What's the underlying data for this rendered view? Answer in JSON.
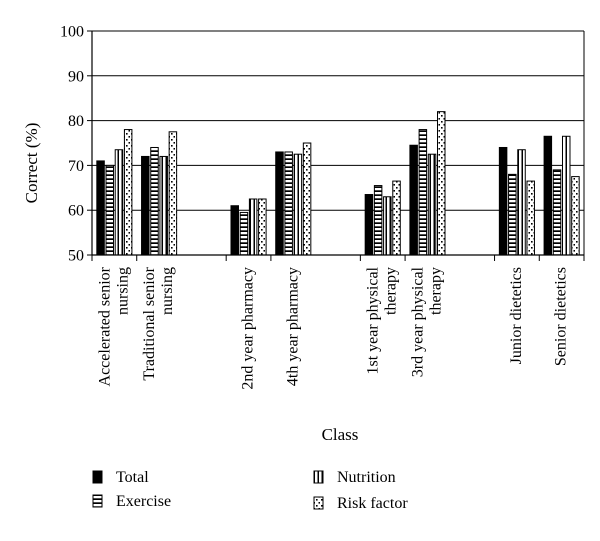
{
  "chart_data": {
    "type": "bar",
    "title": "",
    "xlabel": "Class",
    "ylabel": "Correct (%)",
    "ylim": [
      50,
      100
    ],
    "yticks": [
      50,
      60,
      70,
      80,
      90,
      100
    ],
    "grid": true,
    "legend_position": "bottom",
    "categories": [
      [
        "Accelerated senior",
        "nursing"
      ],
      [
        "Traditional senior",
        "nursing"
      ],
      [
        "2nd year pharmacy"
      ],
      [
        "4th year pharmacy"
      ],
      [
        "1st year physical",
        "therapy"
      ],
      [
        "3rd year physical",
        "therapy"
      ],
      [
        "Junior dietetics"
      ],
      [
        "Senior dietetics"
      ]
    ],
    "series": [
      {
        "name": "Total",
        "pattern": "solid",
        "values": [
          71,
          72,
          61,
          73,
          63.5,
          74.5,
          74,
          76.5
        ]
      },
      {
        "name": "Exercise",
        "pattern": "hstripes",
        "values": [
          70,
          74,
          59.5,
          73,
          65.5,
          78,
          68,
          69
        ]
      },
      {
        "name": "Nutrition",
        "pattern": "vstripes",
        "values": [
          73.5,
          72,
          62.5,
          72.5,
          63,
          72.5,
          73.5,
          76.5
        ]
      },
      {
        "name": "Risk factor",
        "pattern": "dots",
        "values": [
          78,
          77.5,
          62.5,
          75,
          66.5,
          82,
          66.5,
          67.5
        ]
      }
    ]
  }
}
